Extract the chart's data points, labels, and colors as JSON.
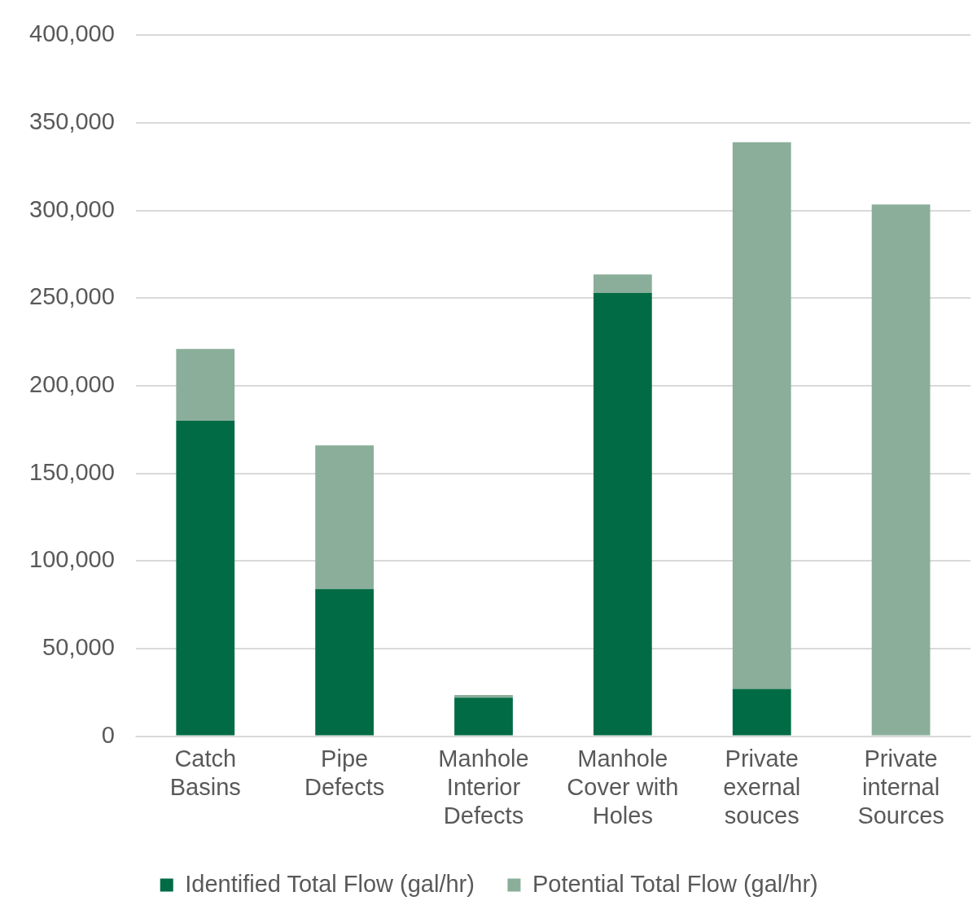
{
  "chart_data": {
    "type": "bar",
    "stacked": true,
    "categories": [
      "Catch Basins",
      "Pipe Defects",
      "Manhole Interior Defects",
      "Manhole Cover with Holes",
      "Private exernal souces",
      "Private internal Sources"
    ],
    "series": [
      {
        "name": "Identified Total Flow (gal/hr)",
        "color": "#006b45",
        "values": [
          180000,
          84000,
          22000,
          253000,
          27000,
          0
        ]
      },
      {
        "name": "Potential Total Flow (gal/hr)",
        "color": "#8aae9a",
        "values": [
          41000,
          82000,
          1500,
          10500,
          312000,
          303500
        ]
      }
    ],
    "ylim": [
      0,
      400000
    ],
    "yticks": [
      0,
      {
        "value": 50000,
        "label": "50,000"
      },
      {
        "value": 100000,
        "label": "100,000"
      },
      {
        "value": 150000,
        "label": "150,000"
      },
      {
        "value": 200000,
        "label": "200,000"
      },
      {
        "value": 250000,
        "label": "250,000"
      },
      {
        "value": 300000,
        "label": "300,000"
      },
      {
        "value": 350000,
        "label": "350,000"
      },
      {
        "value": 400000,
        "label": "400,000"
      }
    ],
    "grid": "y",
    "legend": "bottom"
  }
}
